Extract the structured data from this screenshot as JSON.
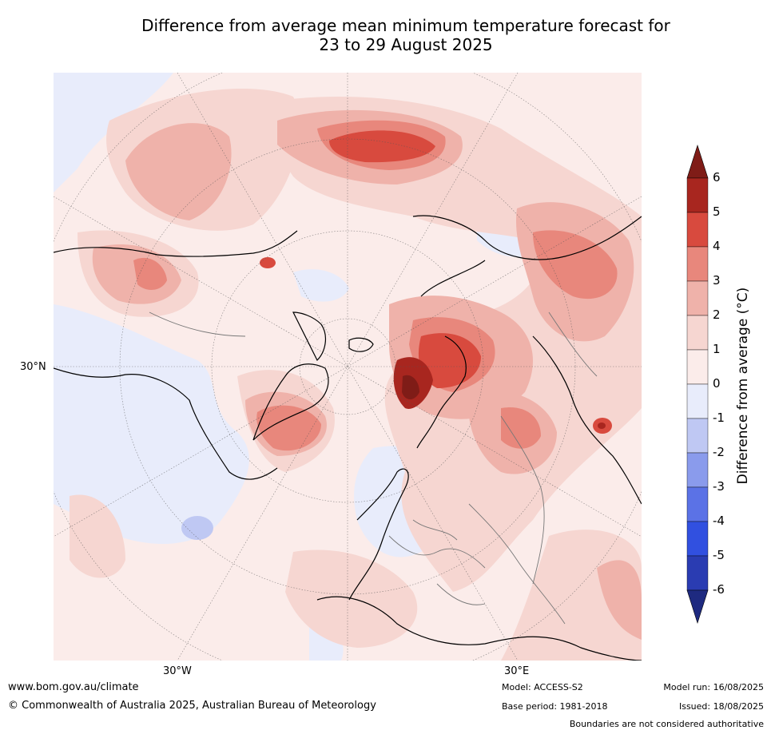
{
  "title_line1": "Difference from average mean minimum temperature forecast for",
  "title_line2": "23 to 29 August 2025",
  "map": {
    "lat_label": "30°N",
    "lon_labels": [
      "30°W",
      "30°E"
    ]
  },
  "legend": {
    "title": "Difference from average (°C)",
    "ticks": [
      "6",
      "5",
      "4",
      "3",
      "2",
      "1",
      "0",
      "-1",
      "-2",
      "-3",
      "-4",
      "-5",
      "-6"
    ],
    "colors": [
      "#7f1c17",
      "#a8261f",
      "#d84a3e",
      "#e8877c",
      "#efb2aa",
      "#f6d6d1",
      "#fbecea",
      "#e8ecfb",
      "#bfc8f3",
      "#8a9bec",
      "#5b72e6",
      "#3150e0",
      "#2a3cb2",
      "#1e2a80"
    ]
  },
  "footer": {
    "website": "www.bom.gov.au/climate",
    "copyright": "© Commonwealth of Australia 2025, Australian Bureau of Meteorology",
    "model": "Model: ACCESS-S2",
    "base_period": "Base period: 1981-2018",
    "model_run": "Model run: 16/08/2025",
    "issued": "Issued: 18/08/2025",
    "disclaimer": "Boundaries are not considered authoritative"
  }
}
